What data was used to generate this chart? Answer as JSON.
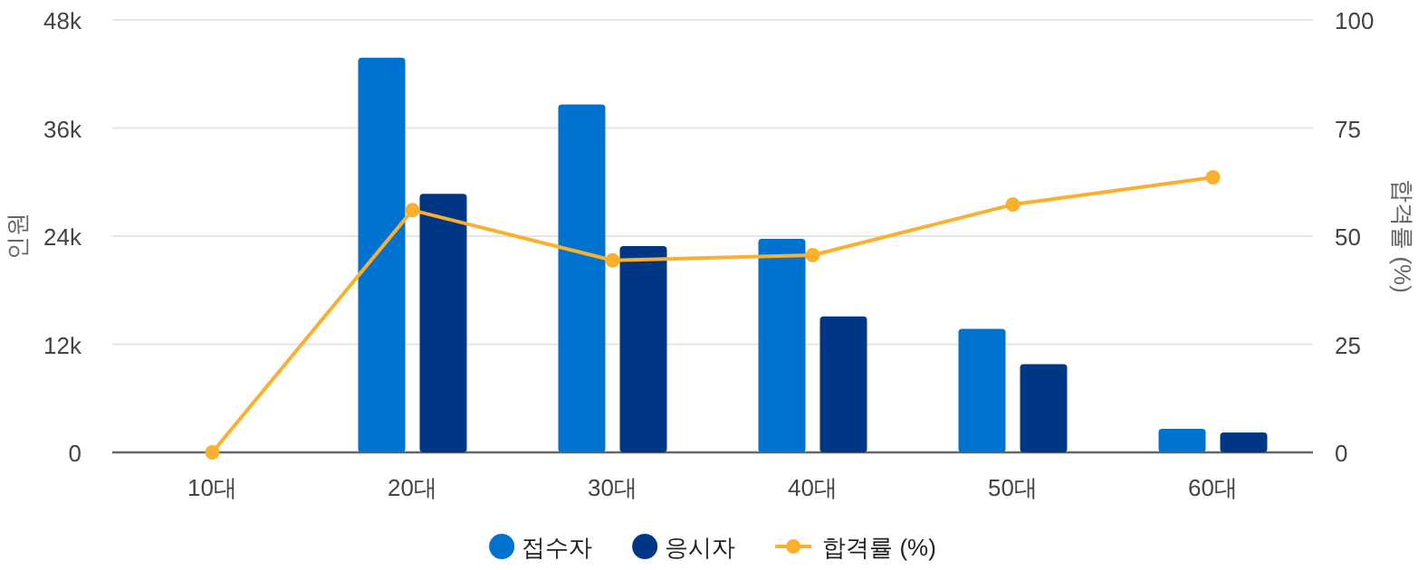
{
  "chart_data": {
    "type": "bar",
    "categories": [
      "10대",
      "20대",
      "30대",
      "40대",
      "50대",
      "60대"
    ],
    "ylabel": "인원",
    "y2label": "합격률 (%)",
    "ylim": [
      0,
      48000
    ],
    "yticks": [
      {
        "value": 0,
        "label": "0"
      },
      {
        "value": 12000,
        "label": "12k"
      },
      {
        "value": 24000,
        "label": "24k"
      },
      {
        "value": 36000,
        "label": "36k"
      },
      {
        "value": 48000,
        "label": "48k"
      }
    ],
    "y2lim": [
      0,
      100
    ],
    "y2ticks": [
      0,
      25,
      50,
      75,
      100
    ],
    "grid": "y",
    "legend": "bottom",
    "series": [
      {
        "name": "접수자",
        "color": "#0073d1",
        "values": [
          0,
          43800,
          38600,
          23700,
          13700,
          2600
        ]
      },
      {
        "name": "응시자",
        "color": "#003785",
        "values": [
          0,
          28700,
          22900,
          15100,
          9800,
          2200
        ]
      },
      {
        "name": "합격률 (%)",
        "type": "line",
        "axis": "y2",
        "color": "#fbb02d",
        "marker": "circle",
        "values": [
          0,
          56,
          44.4,
          45.6,
          57.3,
          63.6
        ]
      }
    ]
  }
}
